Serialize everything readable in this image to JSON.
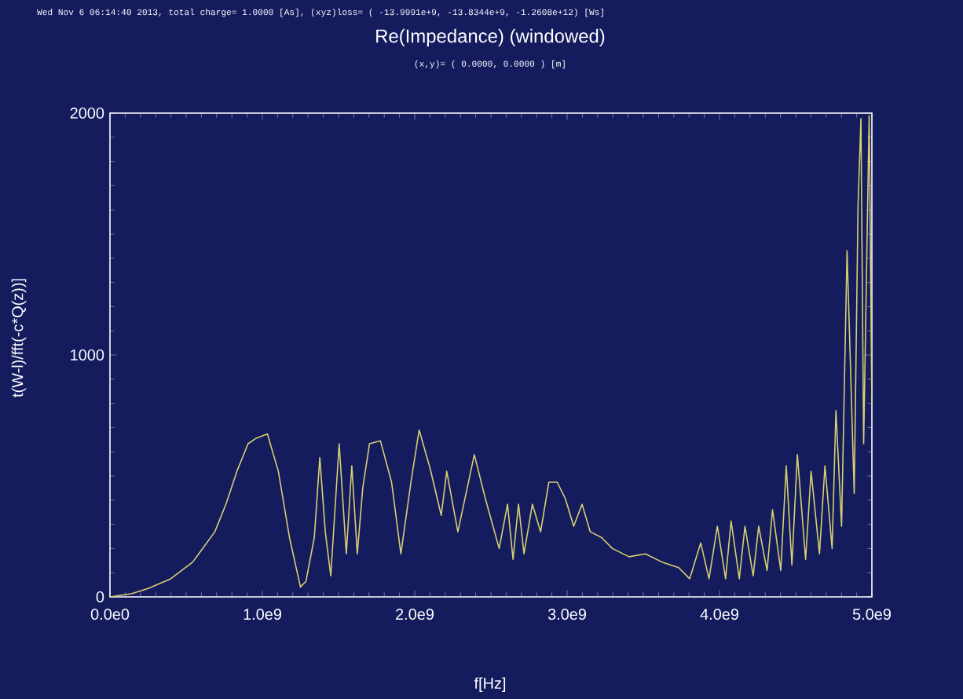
{
  "chart_data": {
    "type": "line",
    "title": "Re(Impedance) (windowed)",
    "subtitle": "(x,y)= ( 0.0000, 0.0000 ) [m]",
    "annotations": [
      "Wed Nov  6 06:14:40 2013, total charge= 1.0000 [As], (xyz)loss= ( -13.9991e+9, -13.8344e+9, -1.2608e+12) [Ws]"
    ],
    "xlabel": "f[Hz]",
    "ylabel": "t(W-l)/fft(-c*Q(z))]",
    "x": [
      0,
      145000000.0,
      254000000.0,
      399000000.0,
      543000000.0,
      688000000.0,
      761000000.0,
      833000000.0,
      906000000.0,
      960000000.0,
      1033000000.0,
      1105000000.0,
      1178000000.0,
      1250000000.0,
      1286000000.0,
      1341000000.0,
      1377000000.0,
      1413000000.0,
      1449000000.0,
      1504000000.0,
      1551000000.0,
      1587000000.0,
      1623000000.0,
      1659000000.0,
      1703000000.0,
      1775000000.0,
      1848000000.0,
      1909000000.0,
      1975000000.0,
      2029000000.0,
      2101000000.0,
      2174000000.0,
      2210000000.0,
      2283000000.0,
      2391000000.0,
      2464000000.0,
      2554000000.0,
      2609000000.0,
      2645000000.0,
      2681000000.0,
      2717000000.0,
      2772000000.0,
      2826000000.0,
      2880000000.0,
      2935000000.0,
      2989000000.0,
      3043000000.0,
      3098000000.0,
      3152000000.0,
      3225000000.0,
      3297000000.0,
      3406000000.0,
      3514000000.0,
      3623000000.0,
      3732000000.0,
      3804000000.0,
      3877000000.0,
      3931000000.0,
      3986000000.0,
      4040000000.0,
      4076000000.0,
      4130000000.0,
      4167000000.0,
      4221000000.0,
      4257000000.0,
      4312000000.0,
      4348000000.0,
      4402000000.0,
      4438000000.0,
      4475000000.0,
      4511000000.0,
      4565000000.0,
      4601000000.0,
      4656000000.0,
      4692000000.0,
      4739000000.0,
      4764000000.0,
      4801000000.0,
      4837000000.0,
      4884000000.0,
      4909000000.0,
      4928000000.0,
      4946000000.0,
      4982000000.0,
      5000000000.0
    ],
    "series": [
      {
        "color": "#d8d070",
        "values": [
          0,
          14,
          36,
          75,
          144,
          269,
          383,
          519,
          633,
          656,
          674,
          519,
          246,
          41,
          64,
          246,
          576,
          269,
          87,
          633,
          178,
          542,
          178,
          451,
          633,
          645,
          474,
          178,
          474,
          690,
          531,
          337,
          519,
          269,
          588,
          405,
          200,
          383,
          155,
          383,
          178,
          383,
          269,
          474,
          474,
          405,
          292,
          383,
          269,
          246,
          200,
          166,
          178,
          144,
          121,
          75,
          223,
          75,
          292,
          75,
          314,
          75,
          292,
          87,
          292,
          109,
          360,
          109,
          542,
          132,
          588,
          155,
          519,
          178,
          542,
          200,
          770,
          292,
          1431,
          428,
          1613,
          1977,
          633,
          1989,
          793
        ]
      }
    ],
    "xlim": [
      0,
      5000000000.0
    ],
    "ylim": [
      0,
      2000
    ],
    "xticks": [
      {
        "value": 0,
        "label": "0.0e0"
      },
      {
        "value": 1000000000.0,
        "label": "1.0e9"
      },
      {
        "value": 2000000000.0,
        "label": "2.0e9"
      },
      {
        "value": 3000000000.0,
        "label": "3.0e9"
      },
      {
        "value": 4000000000.0,
        "label": "4.0e9"
      },
      {
        "value": 5000000000.0,
        "label": "5.0e9"
      }
    ],
    "yticks": [
      0,
      1000,
      2000
    ],
    "grid": false,
    "line_style": "solid"
  }
}
